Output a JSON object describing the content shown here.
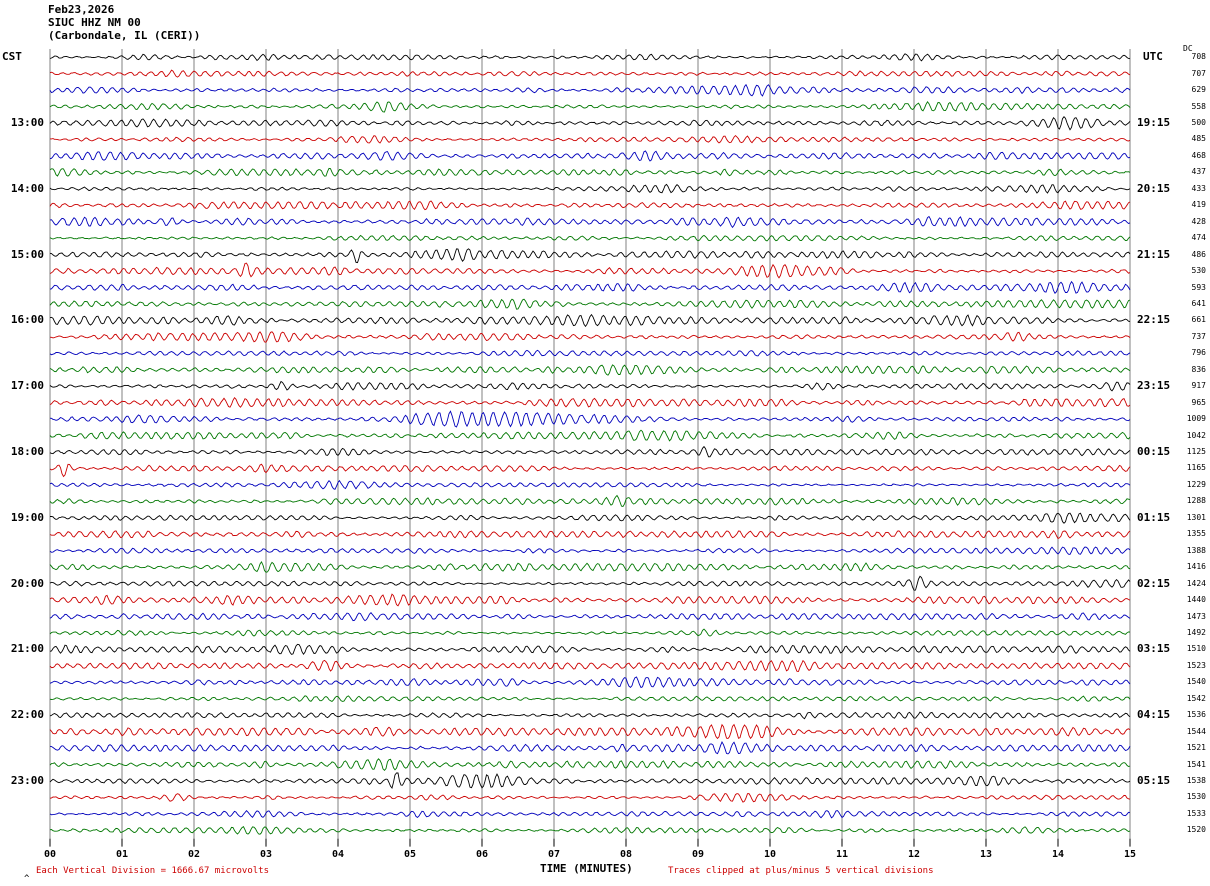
{
  "header": {
    "date": "Feb23,2026",
    "station": "SIUC HHZ NM 00",
    "location": "(Carbondale, IL (CERI))",
    "left_tz": "CST",
    "right_tz": "UTC",
    "dc_label": "DC"
  },
  "footer": {
    "artifact": "^",
    "scale_note": "Each Vertical Division = 1666.67 microvolts",
    "axis_label": "TIME (MINUTES)",
    "clip_note": "Traces clipped at plus/minus 5 vertical divisions"
  },
  "chart_data": {
    "type": "line",
    "title": "SIUC HHZ NM 00 (Carbondale, IL (CERI)) helicorder, Feb23,2026",
    "xlabel": "TIME (MINUTES)",
    "x_range": [
      0,
      15
    ],
    "minute_tick_labels": [
      "00",
      "01",
      "02",
      "03",
      "04",
      "05",
      "06",
      "07",
      "08",
      "09",
      "10",
      "11",
      "12",
      "13",
      "14",
      "15"
    ],
    "rows": 48,
    "minutes_per_row": 15,
    "row_color_cycle": [
      "black",
      "red",
      "blue",
      "green"
    ],
    "trace_colors": {
      "black": "#000000",
      "red": "#cc0000",
      "blue": "#0000bb",
      "green": "#007700"
    },
    "left_time_labels": [
      "13:00",
      "14:00",
      "15:00",
      "16:00",
      "17:00",
      "18:00",
      "19:00",
      "20:00",
      "21:00",
      "22:00",
      "23:00"
    ],
    "right_time_labels": [
      "19:15",
      "20:15",
      "21:15",
      "22:15",
      "23:15",
      "00:15",
      "01:15",
      "02:15",
      "03:15",
      "04:15",
      "05:15"
    ],
    "hour_label_rows": [
      4,
      8,
      12,
      16,
      20,
      24,
      28,
      32,
      36,
      40,
      44
    ],
    "dc_values": [
      708,
      707,
      629,
      558,
      500,
      485,
      468,
      437,
      433,
      419,
      428,
      474,
      486,
      530,
      593,
      641,
      661,
      737,
      796,
      836,
      917,
      965,
      1009,
      1042,
      1125,
      1165,
      1229,
      1288,
      1301,
      1355,
      1388,
      1416,
      1424,
      1440,
      1473,
      1492,
      1510,
      1523,
      1540,
      1542,
      1536,
      1544,
      1521,
      1541,
      1538,
      1530,
      1533,
      1520
    ],
    "clip_divisions": 5,
    "microvolts_per_division": 1666.67,
    "gridline_color": "#808080",
    "events": [
      {
        "row": 22,
        "minute": 6.3,
        "width": 0.85,
        "amp": 4.5,
        "note": "largest burst (blue trace, 17:30 CST row)"
      },
      {
        "row": 22,
        "minute": 5.35,
        "width": 0.3,
        "amp": 3.0
      },
      {
        "row": 12,
        "minute": 4.25,
        "width": 0.05,
        "amp": 7
      },
      {
        "row": 13,
        "minute": 2.72,
        "width": 0.05,
        "amp": 6
      },
      {
        "row": 25,
        "minute": 0.2,
        "width": 0.05,
        "amp": 8
      },
      {
        "row": 32,
        "minute": 12.05,
        "width": 0.07,
        "amp": 5
      },
      {
        "row": 44,
        "minute": 4.8,
        "width": 0.05,
        "amp": 9
      }
    ]
  }
}
